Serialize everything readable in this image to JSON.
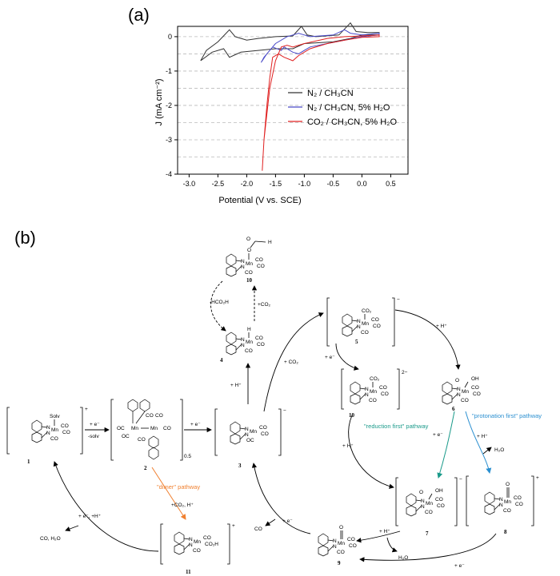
{
  "panel_a": {
    "label": "(a)",
    "chart_data": {
      "type": "line",
      "xlabel": "Potential (V vs. SCE)",
      "ylabel": "J (mA cm⁻²)",
      "xlim": [
        -3.2,
        0.8
      ],
      "ylim": [
        -4,
        0.3
      ],
      "x_ticks": [
        "-3.0",
        "-2.5",
        "-2.0",
        "-1.5",
        "-1.0",
        "-0.5",
        "0.0",
        "0.5"
      ],
      "y_ticks": [
        "0",
        "-1",
        "-2",
        "-3",
        "-4"
      ],
      "grid": "horizontal dashed",
      "legend_position": "right",
      "series": [
        {
          "name": "N₂ / CH₃CN",
          "color": "#333333",
          "x": [
            -2.8,
            -2.6,
            -2.4,
            -2.3,
            -2.1,
            -1.8,
            -1.5,
            -1.2,
            -1.0,
            -0.5,
            -0.2,
            0.0,
            0.3,
            0.3,
            0.1,
            -0.1,
            -0.2,
            -0.4,
            -0.8,
            -0.95,
            -1.05,
            -1.2,
            -1.5,
            -1.8,
            -2.0,
            -2.2,
            -2.3,
            -2.5,
            -2.7,
            -2.8
          ],
          "y": [
            -0.7,
            -0.45,
            -0.35,
            -0.6,
            -0.45,
            -0.4,
            -0.35,
            -0.35,
            -0.2,
            -0.15,
            -0.05,
            0.05,
            0.05,
            0.12,
            0.12,
            0.15,
            0.4,
            0.05,
            0.0,
            0.05,
            0.3,
            0.02,
            0.0,
            -0.05,
            -0.1,
            0.0,
            0.2,
            -0.15,
            -0.4,
            -0.7
          ]
        },
        {
          "name": "N₂ / CH₃CN, 5% H₂O",
          "color": "#4a4ac8",
          "x": [
            -1.75,
            -1.65,
            -1.55,
            -1.4,
            -1.35,
            -1.2,
            -1.1,
            -0.9,
            -0.6,
            -0.3,
            0.0,
            0.3,
            0.3,
            0.0,
            -0.2,
            -0.3,
            -0.5,
            -0.9,
            -1.1,
            -1.2,
            -1.3,
            -1.5,
            -1.7,
            -1.75
          ],
          "y": [
            -0.75,
            -0.5,
            -0.3,
            -0.4,
            -0.3,
            -0.45,
            -0.5,
            -0.3,
            -0.2,
            -0.1,
            0.0,
            0.05,
            0.1,
            0.05,
            0.1,
            0.2,
            0.05,
            0.0,
            0.1,
            0.05,
            0.0,
            -0.2,
            -0.6,
            -0.75
          ]
        },
        {
          "name": "CO₂ / CH₃CN, 5% H₂O",
          "color": "#e02020",
          "x": [
            -1.73,
            -1.7,
            -1.65,
            -1.6,
            -1.55,
            -1.45,
            -1.35,
            -1.2,
            -1.1,
            -0.9,
            -0.6,
            -0.3,
            0.0,
            0.3,
            0.3,
            0.0,
            -0.3,
            -0.6,
            -1.0,
            -1.2,
            -1.3,
            -1.4,
            -1.5,
            -1.6,
            -1.7,
            -1.73
          ],
          "y": [
            -3.9,
            -3.0,
            -2.0,
            -1.2,
            -0.6,
            -0.5,
            -0.6,
            -0.7,
            -0.55,
            -0.35,
            -0.2,
            -0.1,
            -0.02,
            0.0,
            0.05,
            0.02,
            0.0,
            -0.05,
            -0.2,
            -0.3,
            -0.25,
            -0.3,
            -0.7,
            -1.5,
            -3.0,
            -3.9
          ]
        }
      ]
    }
  },
  "panel_b": {
    "label": "(b)",
    "compounds": {
      "c1": {
        "num": "1",
        "top": "Solv",
        "mn": "Mn",
        "co_a": "CO",
        "co_b": "CO",
        "co_c": "CO",
        "n1": "N",
        "n2": "N",
        "charge": "+"
      },
      "c2": {
        "num": "2",
        "mn1": "Mn",
        "mn2": "Mn",
        "co1": "CO",
        "co2": "CO",
        "co3": "OC",
        "co4": "CO",
        "co5": "OC",
        "co6": "CO",
        "sub": "0.5"
      },
      "c3": {
        "num": "3",
        "mn": "Mn",
        "co_a": "CO",
        "co_b": "CO",
        "co_c": "OC",
        "n1": "N",
        "n2": "N",
        "charge": "−"
      },
      "c4": {
        "num": "4",
        "top": "H",
        "mn": "Mn",
        "co_a": "CO",
        "co_b": "CO",
        "co_c": "CO",
        "n1": "N",
        "n2": "N"
      },
      "c5": {
        "num": "5",
        "top": "CO₂",
        "mn": "Mn",
        "co_a": "CO",
        "co_b": "CO",
        "co_c": "CO",
        "n1": "N",
        "n2": "N",
        "charge": "−"
      },
      "c6": {
        "num": "6",
        "top": "OH",
        "mn": "Mn",
        "co_a": "CO",
        "co_b": "CO",
        "co_c": "CO",
        "n1": "N",
        "n2": "N",
        "o": "O"
      },
      "c7": {
        "num": "7",
        "top": "OH",
        "mn": "Mn",
        "co_a": "CO",
        "co_b": "CO",
        "co_c": "CO",
        "n1": "N",
        "n2": "N",
        "o": "O",
        "charge": "−"
      },
      "c8": {
        "num": "8",
        "top": "O",
        "mn": "Mn",
        "co_a": "CO",
        "co_b": "CO",
        "co_c": "CO",
        "n1": "N",
        "n2": "N",
        "charge": "+"
      },
      "c9": {
        "num": "9",
        "top": "O",
        "mn": "Mn",
        "co_a": "CO",
        "co_b": "CO",
        "co_c": "CO",
        "n1": "N",
        "n2": "N"
      },
      "c10a": {
        "num": "10",
        "top": "O",
        "h": "H",
        "o2": "O",
        "mn": "Mn",
        "co_a": "CO",
        "co_b": "CO",
        "co_c": "CO",
        "n1": "N",
        "n2": "N"
      },
      "c10b": {
        "num": "10",
        "top": "CO₂",
        "mn": "Mn",
        "co_a": "CO",
        "co_b": "CO",
        "co_c": "CO",
        "n1": "N",
        "n2": "N",
        "charge": "2−"
      },
      "c11": {
        "num": "11",
        "mn": "Mn",
        "co_a": "CO",
        "co_b": "CO₂H",
        "co_c": "CO",
        "n1": "N",
        "n2": "N",
        "charge": "+"
      }
    },
    "arrows": {
      "a1_2": "+ e⁻",
      "a1_2b": "-solv",
      "a2_3": "+ e⁻",
      "a3_4": "+ H⁺",
      "a4_10": "+CO₂",
      "a10_4": "-HCO₂H",
      "a3_5": "+ CO₂",
      "a5_6": "+ H⁺",
      "a5_10": "+ e⁻",
      "a10_7": "+ H⁺",
      "a6_7": "+ e⁻",
      "a6_8": "+ H⁺",
      "h2o_8": "H₂O",
      "a7_9": "+ H⁺",
      "h2o_9": "H₂O",
      "a8_9": "+ e⁻",
      "a9_3": "+ e⁻",
      "co_out": "CO",
      "a11_1": "+ e⁻, +H⁺",
      "co_h2o": "CO, H₂O",
      "a2_11": "+CO₂, H⁺"
    },
    "pathways": {
      "dimer": "\"dimer\" pathway",
      "reduction": "\"reduction first\" pathway",
      "protonation": "\"protonation first\" pathway"
    },
    "colors": {
      "dimer": "#f08030",
      "reduction": "#1a9a8a",
      "protonation": "#2a8fd0"
    }
  }
}
